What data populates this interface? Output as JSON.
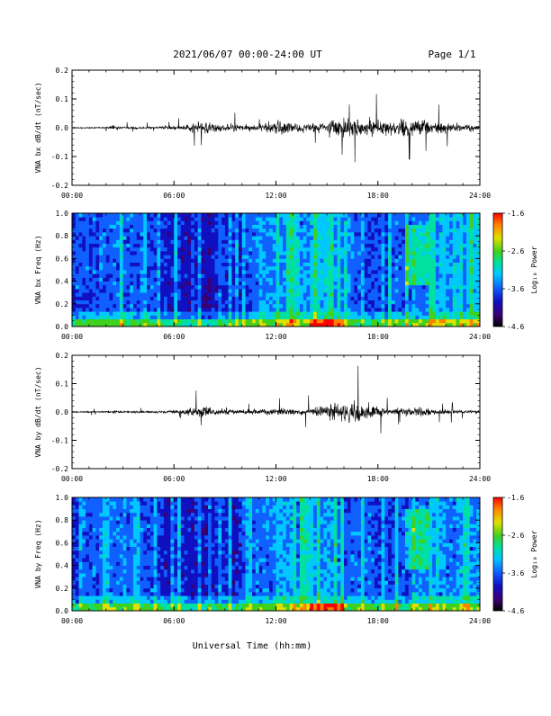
{
  "header": {
    "title": "2021/06/07  00:00-24:00 UT",
    "page": "Page 1/1"
  },
  "colors": {
    "trace": "#000000",
    "axis": "#000000",
    "spectrogram_colormap": [
      "#000000",
      "#3b0070",
      "#1010c0",
      "#1060ff",
      "#00c8ff",
      "#00e0a0",
      "#40d020",
      "#e0e000",
      "#ff8000",
      "#ff0000"
    ]
  },
  "xlabel": "Universal Time (hh:mm)",
  "chart_data": [
    {
      "type": "line",
      "ylabel": "VNA bx dB/dt (nT/sec)",
      "x_ticks": [
        "00:00",
        "06:00",
        "12:00",
        "18:00",
        "24:00"
      ],
      "y_ticks": [
        "0.2",
        "0.1",
        "0.0",
        "-0.1",
        "-0.2"
      ],
      "xlim": [
        0,
        24
      ],
      "ylim": [
        -0.2,
        0.2
      ],
      "series": [
        {
          "x": [
            0,
            1,
            2,
            2.5,
            3,
            4,
            5,
            6,
            6.5,
            7,
            7.5,
            8,
            8.5,
            9,
            10,
            11,
            11.5,
            12,
            13,
            14,
            14.5,
            15,
            15.5,
            16,
            16.5,
            17,
            17.5,
            18,
            18.5,
            19,
            19.5,
            20,
            20.5,
            21,
            21.5,
            22,
            23,
            24
          ],
          "amplitude": [
            0.004,
            0.005,
            0.006,
            0.02,
            0.008,
            0.009,
            0.01,
            0.012,
            0.02,
            0.03,
            0.04,
            0.05,
            0.035,
            0.03,
            0.025,
            0.025,
            0.04,
            0.06,
            0.035,
            0.03,
            0.04,
            0.05,
            0.07,
            0.09,
            0.08,
            0.06,
            0.07,
            0.06,
            0.05,
            0.05,
            0.06,
            0.06,
            0.07,
            0.05,
            0.04,
            0.035,
            0.03,
            0.025
          ]
        }
      ]
    },
    {
      "type": "heatmap",
      "ylabel": "VNA bx Freq (Hz)",
      "x_ticks": [
        "00:00",
        "06:00",
        "12:00",
        "18:00",
        "24:00"
      ],
      "y_ticks": [
        "1.0",
        "0.8",
        "0.6",
        "0.4",
        "0.2",
        "0.0"
      ],
      "xlim": [
        0,
        24
      ],
      "ylim": [
        0,
        1.0
      ],
      "colorbar": {
        "label": "Log₁₀ Power",
        "ticks": [
          "-1.6",
          "-2.6",
          "-3.6",
          "-4.6"
        ],
        "range": [
          -4.6,
          -1.6
        ]
      },
      "low_freq_band_peak_hours": [
        14,
        16
      ],
      "enhanced_band": {
        "hours": [
          19.5,
          21
        ],
        "freq": [
          0.35,
          0.9
        ]
      }
    },
    {
      "type": "line",
      "ylabel": "VNA by dB/dt (nT/sec)",
      "x_ticks": [
        "00:00",
        "06:00",
        "12:00",
        "18:00",
        "24:00"
      ],
      "y_ticks": [
        "0.2",
        "0.1",
        "0.0",
        "-0.1",
        "-0.2"
      ],
      "xlim": [
        0,
        24
      ],
      "ylim": [
        -0.2,
        0.2
      ],
      "series": [
        {
          "x": [
            0,
            1,
            2,
            2.5,
            3,
            4,
            5,
            6,
            6.5,
            7,
            7.5,
            8,
            8.5,
            9,
            10,
            11,
            11.5,
            12,
            13,
            14,
            14.5,
            15,
            15.5,
            16,
            16.5,
            17,
            17.5,
            18,
            18.5,
            19,
            19.5,
            20,
            20.5,
            21,
            21.5,
            22,
            23,
            24
          ],
          "amplitude": [
            0.004,
            0.005,
            0.006,
            0.015,
            0.007,
            0.008,
            0.009,
            0.011,
            0.015,
            0.025,
            0.035,
            0.04,
            0.03,
            0.025,
            0.02,
            0.02,
            0.03,
            0.03,
            0.02,
            0.025,
            0.04,
            0.06,
            0.07,
            0.08,
            0.085,
            0.07,
            0.065,
            0.04,
            0.03,
            0.025,
            0.03,
            0.03,
            0.035,
            0.025,
            0.02,
            0.02,
            0.015,
            0.012
          ]
        }
      ]
    },
    {
      "type": "heatmap",
      "ylabel": "VNA by Freq (Hz)",
      "x_ticks": [
        "00:00",
        "06:00",
        "12:00",
        "18:00",
        "24:00"
      ],
      "y_ticks": [
        "1.0",
        "0.8",
        "0.6",
        "0.4",
        "0.2",
        "0.0"
      ],
      "xlim": [
        0,
        24
      ],
      "ylim": [
        0,
        1.0
      ],
      "colorbar": {
        "label": "Log₁₀ Power",
        "ticks": [
          "-1.6",
          "-2.6",
          "-3.6",
          "-4.6"
        ],
        "range": [
          -4.6,
          -1.6
        ]
      },
      "low_freq_band_peak_hours": [
        14,
        16
      ],
      "enhanced_band": {
        "hours": [
          19.5,
          21
        ],
        "freq": [
          0.35,
          0.9
        ]
      }
    }
  ]
}
